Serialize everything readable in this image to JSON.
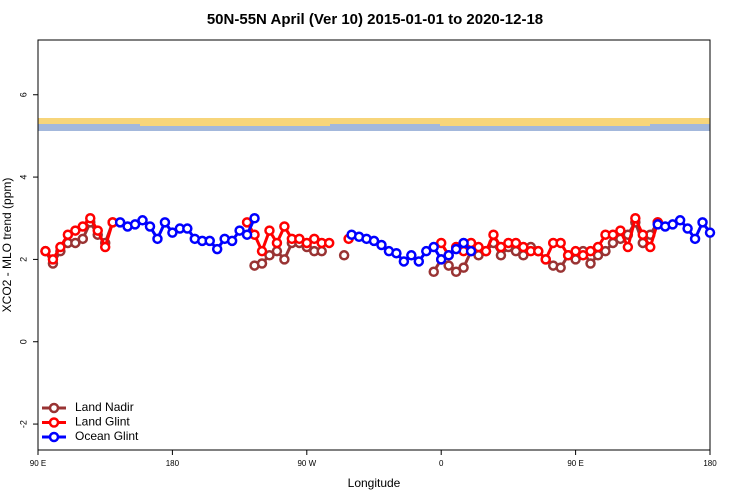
{
  "chart_data": {
    "type": "line",
    "title": "50N-55N April (Ver 10)   2015-01-01 to 2020-12-18",
    "xlabel": "Longitude",
    "ylabel": "XCO2 - MLO trend (ppm)",
    "xlim": [
      90,
      540
    ],
    "xticks": [
      {
        "value": 90,
        "label": "90 E"
      },
      {
        "value": 180,
        "label": "180"
      },
      {
        "value": 270,
        "label": "90 W"
      },
      {
        "value": 360,
        "label": "0"
      },
      {
        "value": 450,
        "label": "90 E"
      },
      {
        "value": 540,
        "label": "180"
      }
    ],
    "ylim": [
      -2.63,
      7.33
    ],
    "yticks": [
      -2,
      0,
      2,
      4,
      6
    ],
    "legend": "bottom-left",
    "series": [
      {
        "name": "Land Nadir",
        "color": "#993333",
        "x": [
          95,
          100,
          105,
          110,
          115,
          120,
          125,
          130,
          135,
          140,
          145,
          235,
          240,
          245,
          250,
          255,
          260,
          265,
          270,
          275,
          280,
          285,
          295,
          300,
          355,
          360,
          365,
          370,
          375,
          380,
          385,
          390,
          395,
          400,
          405,
          410,
          415,
          420,
          425,
          430,
          435,
          440,
          445,
          450,
          455,
          460,
          465,
          470,
          475,
          480,
          485,
          490,
          495,
          500,
          505
        ],
        "values": [
          2.2,
          1.9,
          2.2,
          2.4,
          2.4,
          2.5,
          2.9,
          2.6,
          2.4,
          2.9,
          null,
          1.85,
          1.9,
          2.1,
          2.2,
          2.0,
          2.4,
          2.4,
          2.3,
          2.2,
          2.2,
          null,
          2.1,
          null,
          1.7,
          2.0,
          1.85,
          1.7,
          1.8,
          2.2,
          2.1,
          2.2,
          2.4,
          2.1,
          2.3,
          2.2,
          2.1,
          2.3,
          2.2,
          2.0,
          1.85,
          1.8,
          2.1,
          2.0,
          2.2,
          1.9,
          2.1,
          2.2,
          2.4,
          2.5,
          2.6,
          2.9,
          2.4,
          2.6,
          2.9
        ]
      },
      {
        "name": "Land Glint",
        "color": "#ff0000",
        "x": [
          95,
          100,
          105,
          110,
          115,
          120,
          125,
          130,
          135,
          140,
          145,
          230,
          235,
          240,
          245,
          250,
          255,
          260,
          265,
          270,
          275,
          280,
          285,
          290,
          298,
          303,
          360,
          365,
          370,
          375,
          380,
          385,
          390,
          395,
          400,
          405,
          410,
          415,
          420,
          425,
          430,
          435,
          440,
          445,
          450,
          455,
          460,
          465,
          470,
          475,
          480,
          485,
          490,
          495,
          500,
          505
        ],
        "values": [
          2.2,
          2.0,
          2.3,
          2.6,
          2.7,
          2.8,
          3.0,
          2.7,
          2.3,
          2.9,
          null,
          2.9,
          2.6,
          2.2,
          2.7,
          2.4,
          2.8,
          2.5,
          2.5,
          2.4,
          2.5,
          2.4,
          2.4,
          null,
          2.5,
          null,
          2.4,
          2.1,
          2.3,
          2.2,
          2.4,
          2.3,
          2.2,
          2.6,
          2.3,
          2.4,
          2.4,
          2.3,
          2.2,
          2.2,
          2.0,
          2.4,
          2.4,
          2.1,
          2.2,
          2.1,
          2.2,
          2.3,
          2.6,
          2.6,
          2.7,
          2.3,
          3.0,
          2.6,
          2.3,
          2.9
        ]
      },
      {
        "name": "Ocean Glint",
        "color": "#0000ff",
        "x": [
          145,
          150,
          155,
          160,
          165,
          170,
          175,
          180,
          185,
          190,
          195,
          200,
          205,
          210,
          215,
          220,
          225,
          230,
          235,
          240,
          300,
          305,
          310,
          315,
          320,
          325,
          330,
          335,
          340,
          345,
          350,
          355,
          360,
          365,
          370,
          375,
          380,
          385,
          505,
          510,
          515,
          520,
          525,
          530,
          535,
          540
        ],
        "values": [
          2.9,
          2.8,
          2.85,
          2.95,
          2.8,
          2.5,
          2.9,
          2.65,
          2.75,
          2.75,
          2.5,
          2.45,
          2.45,
          2.25,
          2.5,
          2.45,
          2.7,
          2.6,
          3.0,
          null,
          2.6,
          2.55,
          2.5,
          2.45,
          2.35,
          2.2,
          2.15,
          1.95,
          2.1,
          1.95,
          2.2,
          2.3,
          2.0,
          2.1,
          2.25,
          2.4,
          2.2,
          null,
          2.85,
          2.8,
          2.85,
          2.95,
          2.75,
          2.5,
          2.9,
          2.65
        ]
      }
    ]
  }
}
